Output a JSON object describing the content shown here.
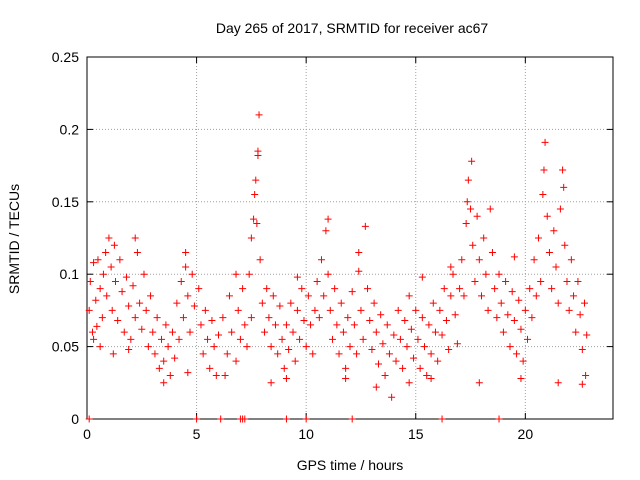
{
  "chart_data": {
    "type": "scatter",
    "title": "Day 265 of 2017, SRMTID for receiver ac67",
    "xlabel": "GPS time / hours",
    "ylabel": "SRMTID / TECUs",
    "xlim": [
      0,
      24
    ],
    "ylim": [
      0,
      0.25
    ],
    "x_ticks": [
      0,
      5,
      10,
      15,
      20
    ],
    "y_ticks": [
      0,
      0.05,
      0.1,
      0.15,
      0.2,
      0.25
    ],
    "x_tick_labels": [
      "0",
      "5",
      "10",
      "15",
      "20"
    ],
    "y_tick_labels": [
      "0",
      "0.05",
      "0.1",
      "0.15",
      "0.2",
      "0.25"
    ],
    "grid": true,
    "marker": "plus",
    "color": "#ff0000",
    "series": [
      {
        "name": "SRMTID",
        "points": [
          [
            0.1,
            0.075
          ],
          [
            0.15,
            0.095
          ],
          [
            0.25,
            0.06
          ],
          [
            0.3,
            0.108
          ],
          [
            0.4,
            0.082
          ],
          [
            0.45,
            0.064
          ],
          [
            0.5,
            0.11
          ],
          [
            0.6,
            0.09
          ],
          [
            0.7,
            0.07
          ],
          [
            0.75,
            0.1
          ],
          [
            0.85,
            0.115
          ],
          [
            0.9,
            0.085
          ],
          [
            1.0,
            0.125
          ],
          [
            1.1,
            0.105
          ],
          [
            1.15,
            0.075
          ],
          [
            1.25,
            0.12
          ],
          [
            1.3,
            0.095
          ],
          [
            1.4,
            0.068
          ],
          [
            1.5,
            0.11
          ],
          [
            1.6,
            0.088
          ],
          [
            1.7,
            0.06
          ],
          [
            1.8,
            0.098
          ],
          [
            1.9,
            0.078
          ],
          [
            2.0,
            0.055
          ],
          [
            2.1,
            0.092
          ],
          [
            2.2,
            0.07
          ],
          [
            2.3,
            0.115
          ],
          [
            2.4,
            0.08
          ],
          [
            2.5,
            0.062
          ],
          [
            2.6,
            0.1
          ],
          [
            2.7,
            0.075
          ],
          [
            2.8,
            0.05
          ],
          [
            2.9,
            0.085
          ],
          [
            3.0,
            0.06
          ],
          [
            3.1,
            0.045
          ],
          [
            3.2,
            0.07
          ],
          [
            3.3,
            0.035
          ],
          [
            3.4,
            0.055
          ],
          [
            3.5,
            0.04
          ],
          [
            3.6,
            0.065
          ],
          [
            3.7,
            0.05
          ],
          [
            3.8,
            0.03
          ],
          [
            3.9,
            0.06
          ],
          [
            4.0,
            0.042
          ],
          [
            4.1,
            0.08
          ],
          [
            4.2,
            0.055
          ],
          [
            4.3,
            0.095
          ],
          [
            4.4,
            0.07
          ],
          [
            4.5,
            0.115
          ],
          [
            4.6,
            0.085
          ],
          [
            4.7,
            0.06
          ],
          [
            4.8,
            0.1
          ],
          [
            4.9,
            0.078
          ],
          [
            5.1,
            0.09
          ],
          [
            5.2,
            0.065
          ],
          [
            5.3,
            0.045
          ],
          [
            5.4,
            0.075
          ],
          [
            5.5,
            0.055
          ],
          [
            5.6,
            0.035
          ],
          [
            5.7,
            0.068
          ],
          [
            5.8,
            0.05
          ],
          [
            5.9,
            0.03
          ],
          [
            6.0,
            0.058
          ],
          [
            6.2,
            0.07
          ],
          [
            6.4,
            0.045
          ],
          [
            6.5,
            0.085
          ],
          [
            6.6,
            0.06
          ],
          [
            6.8,
            0.04
          ],
          [
            6.9,
            0.075
          ],
          [
            7.0,
            0.055
          ],
          [
            7.1,
            0.09
          ],
          [
            7.2,
            0.065
          ],
          [
            7.3,
            0.05
          ],
          [
            7.4,
            0.1
          ],
          [
            7.5,
            0.07
          ],
          [
            7.5,
            0.125
          ],
          [
            7.6,
            0.138
          ],
          [
            7.65,
            0.155
          ],
          [
            7.7,
            0.165
          ],
          [
            7.75,
            0.135
          ],
          [
            7.8,
            0.185
          ],
          [
            7.8,
            0.182
          ],
          [
            7.85,
            0.21
          ],
          [
            7.9,
            0.11
          ],
          [
            8.0,
            0.08
          ],
          [
            8.1,
            0.06
          ],
          [
            8.2,
            0.09
          ],
          [
            8.3,
            0.07
          ],
          [
            8.4,
            0.05
          ],
          [
            8.5,
            0.085
          ],
          [
            8.6,
            0.065
          ],
          [
            8.7,
            0.045
          ],
          [
            8.8,
            0.078
          ],
          [
            8.9,
            0.055
          ],
          [
            9.0,
            0.035
          ],
          [
            9.1,
            0.065
          ],
          [
            9.2,
            0.048
          ],
          [
            9.3,
            0.08
          ],
          [
            9.4,
            0.06
          ],
          [
            9.5,
            0.04
          ],
          [
            9.6,
            0.075
          ],
          [
            9.7,
            0.055
          ],
          [
            9.8,
            0.09
          ],
          [
            9.9,
            0.068
          ],
          [
            10.0,
            0.05
          ],
          [
            10.1,
            0.085
          ],
          [
            10.2,
            0.065
          ],
          [
            10.3,
            0.045
          ],
          [
            10.4,
            0.075
          ],
          [
            10.5,
            0.095
          ],
          [
            10.6,
            0.07
          ],
          [
            10.7,
            0.11
          ],
          [
            10.8,
            0.085
          ],
          [
            10.9,
            0.13
          ],
          [
            11.0,
            0.1
          ],
          [
            11.0,
            0.138
          ],
          [
            11.1,
            0.075
          ],
          [
            11.2,
            0.055
          ],
          [
            11.3,
            0.09
          ],
          [
            11.4,
            0.065
          ],
          [
            11.5,
            0.045
          ],
          [
            11.6,
            0.08
          ],
          [
            11.7,
            0.06
          ],
          [
            11.8,
            0.035
          ],
          [
            11.9,
            0.07
          ],
          [
            12.0,
            0.05
          ],
          [
            12.1,
            0.088
          ],
          [
            12.2,
            0.065
          ],
          [
            12.3,
            0.045
          ],
          [
            12.4,
            0.102
          ],
          [
            12.5,
            0.075
          ],
          [
            12.6,
            0.055
          ],
          [
            12.7,
            0.133
          ],
          [
            12.8,
            0.09
          ],
          [
            12.9,
            0.068
          ],
          [
            13.0,
            0.048
          ],
          [
            13.1,
            0.08
          ],
          [
            13.2,
            0.06
          ],
          [
            13.3,
            0.038
          ],
          [
            13.4,
            0.072
          ],
          [
            13.5,
            0.052
          ],
          [
            13.6,
            0.03
          ],
          [
            13.7,
            0.065
          ],
          [
            13.8,
            0.045
          ],
          [
            13.9,
            0.015
          ],
          [
            14.0,
            0.058
          ],
          [
            14.1,
            0.04
          ],
          [
            14.2,
            0.075
          ],
          [
            14.3,
            0.055
          ],
          [
            14.4,
            0.035
          ],
          [
            14.5,
            0.068
          ],
          [
            14.6,
            0.05
          ],
          [
            14.7,
            0.085
          ],
          [
            14.8,
            0.062
          ],
          [
            14.9,
            0.042
          ],
          [
            15.0,
            0.075
          ],
          [
            15.1,
            0.055
          ],
          [
            15.2,
            0.035
          ],
          [
            15.3,
            0.07
          ],
          [
            15.4,
            0.05
          ],
          [
            15.5,
            0.03
          ],
          [
            15.6,
            0.065
          ],
          [
            15.7,
            0.045
          ],
          [
            15.8,
            0.08
          ],
          [
            15.9,
            0.06
          ],
          [
            16.0,
            0.04
          ],
          [
            16.1,
            0.075
          ],
          [
            16.2,
            0.058
          ],
          [
            16.3,
            0.09
          ],
          [
            16.4,
            0.068
          ],
          [
            16.5,
            0.048
          ],
          [
            16.6,
            0.085
          ],
          [
            16.7,
            0.1
          ],
          [
            16.8,
            0.072
          ],
          [
            16.9,
            0.052
          ],
          [
            17.0,
            0.09
          ],
          [
            17.1,
            0.11
          ],
          [
            17.2,
            0.085
          ],
          [
            17.3,
            0.135
          ],
          [
            17.35,
            0.15
          ],
          [
            17.4,
            0.165
          ],
          [
            17.5,
            0.145
          ],
          [
            17.55,
            0.178
          ],
          [
            17.6,
            0.12
          ],
          [
            17.7,
            0.095
          ],
          [
            17.8,
            0.14
          ],
          [
            17.9,
            0.11
          ],
          [
            18.0,
            0.085
          ],
          [
            18.1,
            0.125
          ],
          [
            18.2,
            0.1
          ],
          [
            18.3,
            0.075
          ],
          [
            18.4,
            0.145
          ],
          [
            18.5,
            0.115
          ],
          [
            18.6,
            0.09
          ],
          [
            18.7,
            0.07
          ],
          [
            18.8,
            0.1
          ],
          [
            18.9,
            0.08
          ],
          [
            19.0,
            0.06
          ],
          [
            19.1,
            0.095
          ],
          [
            19.2,
            0.072
          ],
          [
            19.3,
            0.05
          ],
          [
            19.4,
            0.088
          ],
          [
            19.5,
            0.068
          ],
          [
            19.6,
            0.045
          ],
          [
            19.7,
            0.082
          ],
          [
            19.8,
            0.062
          ],
          [
            19.9,
            0.04
          ],
          [
            20.0,
            0.075
          ],
          [
            20.1,
            0.055
          ],
          [
            20.2,
            0.09
          ],
          [
            20.3,
            0.07
          ],
          [
            20.4,
            0.11
          ],
          [
            20.5,
            0.085
          ],
          [
            20.6,
            0.125
          ],
          [
            20.7,
            0.095
          ],
          [
            20.8,
            0.155
          ],
          [
            20.85,
            0.172
          ],
          [
            20.9,
            0.191
          ],
          [
            21.0,
            0.14
          ],
          [
            21.1,
            0.115
          ],
          [
            21.2,
            0.09
          ],
          [
            21.3,
            0.13
          ],
          [
            21.4,
            0.105
          ],
          [
            21.5,
            0.08
          ],
          [
            21.6,
            0.145
          ],
          [
            21.7,
            0.172
          ],
          [
            21.75,
            0.16
          ],
          [
            21.8,
            0.12
          ],
          [
            21.9,
            0.095
          ],
          [
            22.0,
            0.075
          ],
          [
            22.1,
            0.11
          ],
          [
            22.2,
            0.085
          ],
          [
            22.3,
            0.06
          ],
          [
            22.4,
            0.095
          ],
          [
            22.5,
            0.072
          ],
          [
            22.6,
            0.048
          ],
          [
            22.7,
            0.08
          ],
          [
            22.75,
            0.03
          ],
          [
            22.8,
            0.058
          ],
          [
            0.3,
            0.055
          ],
          [
            0.6,
            0.05
          ],
          [
            1.2,
            0.045
          ],
          [
            1.9,
            0.048
          ],
          [
            3.5,
            0.025
          ],
          [
            4.6,
            0.032
          ],
          [
            6.3,
            0.03
          ],
          [
            8.4,
            0.025
          ],
          [
            9.1,
            0.028
          ],
          [
            11.8,
            0.028
          ],
          [
            13.2,
            0.022
          ],
          [
            14.7,
            0.025
          ],
          [
            15.7,
            0.028
          ],
          [
            17.9,
            0.025
          ],
          [
            19.8,
            0.028
          ],
          [
            21.5,
            0.025
          ],
          [
            22.6,
            0.024
          ],
          [
            2.2,
            0.125
          ],
          [
            4.5,
            0.105
          ],
          [
            6.8,
            0.1
          ],
          [
            9.6,
            0.098
          ],
          [
            12.4,
            0.115
          ],
          [
            15.3,
            0.098
          ],
          [
            16.6,
            0.105
          ],
          [
            19.5,
            0.112
          ],
          [
            0.1,
            0.0
          ],
          [
            5.0,
            0.0
          ],
          [
            6.1,
            0.0
          ],
          [
            7.0,
            0.0
          ],
          [
            7.1,
            0.0
          ],
          [
            7.2,
            0.0
          ],
          [
            9.1,
            0.0
          ],
          [
            10.0,
            0.0
          ],
          [
            12.1,
            0.0
          ],
          [
            16.2,
            0.0
          ],
          [
            18.8,
            0.0
          ]
        ]
      }
    ]
  }
}
